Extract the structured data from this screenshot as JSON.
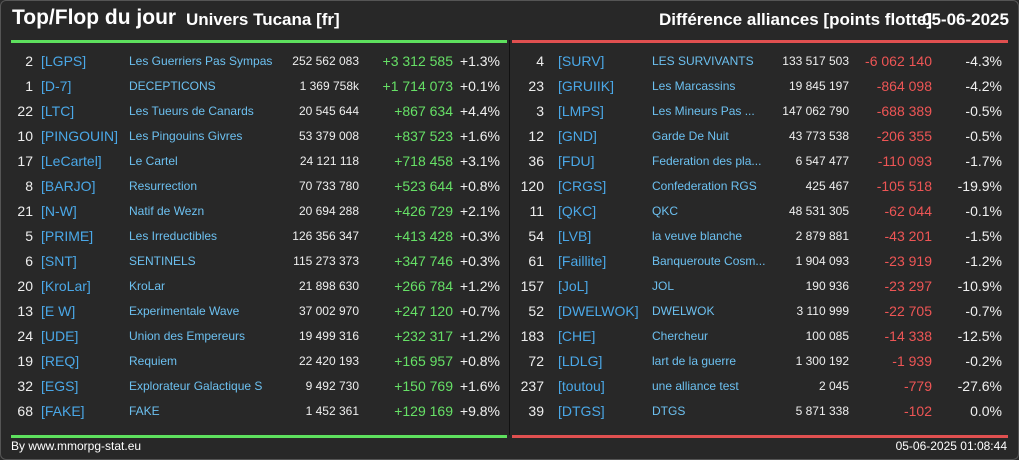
{
  "header": {
    "title": "Top/Flop du jour",
    "universe": "Univers Tucana [fr]",
    "metric": "Différence alliances [points flotte]",
    "date": "05-06-2025"
  },
  "colors": {
    "gain": "#66e066",
    "loss": "#ee5555",
    "tag": "#4aa8e8",
    "name": "#6cc0f0"
  },
  "top": [
    {
      "rank": "2",
      "tag": "[LGPS]",
      "name": "Les Guerriers Pas Sympas",
      "points": "252 562 083",
      "diff": "+3 312 585",
      "pct": "+1.3%"
    },
    {
      "rank": "1",
      "tag": "[D-7]",
      "name": "DECEPTICONS",
      "points": "1 369 758k",
      "diff": "+1 714 073",
      "pct": "+0.1%"
    },
    {
      "rank": "22",
      "tag": "[LTC]",
      "name": "Les Tueurs de Canards",
      "points": "20 545 644",
      "diff": "+867 634",
      "pct": "+4.4%"
    },
    {
      "rank": "10",
      "tag": "[PINGOUIN]",
      "name": "Les Pingouins Givres",
      "points": "53 379 008",
      "diff": "+837 523",
      "pct": "+1.6%"
    },
    {
      "rank": "17",
      "tag": "[LeCartel]",
      "name": "Le Cartel",
      "points": "24 121 118",
      "diff": "+718 458",
      "pct": "+3.1%"
    },
    {
      "rank": "8",
      "tag": "[BARJO]",
      "name": "Resurrection",
      "points": "70 733 780",
      "diff": "+523 644",
      "pct": "+0.8%"
    },
    {
      "rank": "21",
      "tag": "[N-W]",
      "name": "Natif de Wezn",
      "points": "20 694 288",
      "diff": "+426 729",
      "pct": "+2.1%"
    },
    {
      "rank": "5",
      "tag": "[PRIME]",
      "name": "Les Irreductibles",
      "points": "126 356 347",
      "diff": "+413 428",
      "pct": "+0.3%"
    },
    {
      "rank": "6",
      "tag": "[SNT]",
      "name": "SENTINELS",
      "points": "115 273 373",
      "diff": "+347 746",
      "pct": "+0.3%"
    },
    {
      "rank": "20",
      "tag": "[KroLar]",
      "name": "KroLar",
      "points": "21 898 630",
      "diff": "+266 784",
      "pct": "+1.2%"
    },
    {
      "rank": "13",
      "tag": "[E W]",
      "name": "Experimentale Wave",
      "points": "37 002 970",
      "diff": "+247 120",
      "pct": "+0.7%"
    },
    {
      "rank": "24",
      "tag": "[UDE]",
      "name": "Union des Empereurs",
      "points": "19 499 316",
      "diff": "+232 317",
      "pct": "+1.2%"
    },
    {
      "rank": "19",
      "tag": "[REQ]",
      "name": "Requiem",
      "points": "22 420 193",
      "diff": "+165 957",
      "pct": "+0.8%"
    },
    {
      "rank": "32",
      "tag": "[EGS]",
      "name": "Explorateur Galactique S",
      "points": "9 492 730",
      "diff": "+150 769",
      "pct": "+1.6%"
    },
    {
      "rank": "68",
      "tag": "[FAKE]",
      "name": "FAKE",
      "points": "1 452 361",
      "diff": "+129 169",
      "pct": "+9.8%"
    }
  ],
  "flop": [
    {
      "rank": "4",
      "tag": "[SURV]",
      "name": "LES SURVIVANTS",
      "points": "133 517 503",
      "diff": "-6 062 140",
      "pct": "-4.3%"
    },
    {
      "rank": "23",
      "tag": "[GRUIIK]",
      "name": "Les Marcassins",
      "points": "19 845 197",
      "diff": "-864 098",
      "pct": "-4.2%"
    },
    {
      "rank": "3",
      "tag": "[LMPS]",
      "name": "Les Mineurs Pas ...",
      "points": "147 062 790",
      "diff": "-688 389",
      "pct": "-0.5%"
    },
    {
      "rank": "12",
      "tag": "[GND]",
      "name": "Garde De Nuit",
      "points": "43 773 538",
      "diff": "-206 355",
      "pct": "-0.5%"
    },
    {
      "rank": "36",
      "tag": "[FDU]",
      "name": "Federation des pla...",
      "points": "6 547 477",
      "diff": "-110 093",
      "pct": "-1.7%"
    },
    {
      "rank": "120",
      "tag": "[CRGS]",
      "name": "Confederation RGS",
      "points": "425 467",
      "diff": "-105 518",
      "pct": "-19.9%"
    },
    {
      "rank": "11",
      "tag": "[QKC]",
      "name": "QKC",
      "points": "48 531 305",
      "diff": "-62 044",
      "pct": "-0.1%"
    },
    {
      "rank": "54",
      "tag": "[LVB]",
      "name": "la veuve blanche",
      "points": "2 879 881",
      "diff": "-43 201",
      "pct": "-1.5%"
    },
    {
      "rank": "61",
      "tag": "[Faillite]",
      "name": "Banqueroute Cosm...",
      "points": "1 904 093",
      "diff": "-23 919",
      "pct": "-1.2%"
    },
    {
      "rank": "157",
      "tag": "[JoL]",
      "name": "JOL",
      "points": "190 936",
      "diff": "-23 297",
      "pct": "-10.9%"
    },
    {
      "rank": "52",
      "tag": "[DWELWOK]",
      "name": "DWELWOK",
      "points": "3 110 999",
      "diff": "-22 705",
      "pct": "-0.7%"
    },
    {
      "rank": "183",
      "tag": "[CHE]",
      "name": "Chercheur",
      "points": "100 085",
      "diff": "-14 338",
      "pct": "-12.5%"
    },
    {
      "rank": "72",
      "tag": "[LDLG]",
      "name": "lart de la guerre",
      "points": "1 300 192",
      "diff": "-1 939",
      "pct": "-0.2%"
    },
    {
      "rank": "237",
      "tag": "[toutou]",
      "name": "une alliance test",
      "points": "2 045",
      "diff": "-779",
      "pct": "-27.6%"
    },
    {
      "rank": "39",
      "tag": "[DTGS]",
      "name": "DTGS",
      "points": "5 871 338",
      "diff": "-102",
      "pct": "0.0%"
    }
  ],
  "footer": {
    "source": "By www.mmorpg-stat.eu",
    "timestamp": "05-06-2025 01:08:44"
  }
}
